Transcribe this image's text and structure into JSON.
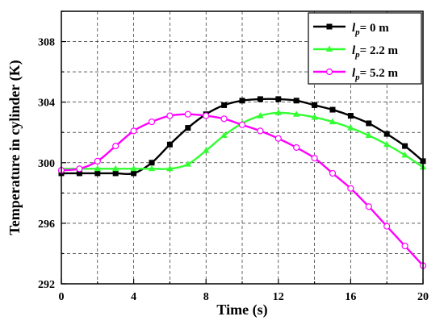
{
  "chart_data": {
    "type": "line",
    "xlabel": "Time (s)",
    "ylabel": "Temperature in cylinder (K)",
    "xlim": [
      0,
      20
    ],
    "ylim": [
      292,
      310
    ],
    "xticks": [
      0,
      4,
      8,
      12,
      16,
      20
    ],
    "yticks": [
      292,
      296,
      300,
      304,
      308
    ],
    "grid": true,
    "legend_position": "top-right",
    "series": [
      {
        "name": "lp= 0 m",
        "name_var": "l",
        "name_sub": "p",
        "name_rest": "= 0 m",
        "color": "#000000",
        "marker": "filled-square",
        "x": [
          0,
          1,
          2,
          3,
          4,
          5,
          6,
          7,
          8,
          9,
          10,
          11,
          12,
          13,
          14,
          15,
          16,
          17,
          18,
          19,
          20
        ],
        "y": [
          299.3,
          299.3,
          299.3,
          299.3,
          299.3,
          300.0,
          301.2,
          302.3,
          303.2,
          303.8,
          304.1,
          304.2,
          304.2,
          304.1,
          303.8,
          303.5,
          303.1,
          302.6,
          301.9,
          301.1,
          300.1
        ]
      },
      {
        "name": "lp= 2.2 m",
        "name_var": "l",
        "name_sub": "p",
        "name_rest": "= 2.2 m",
        "color": "#33ff33",
        "marker": "filled-triangle",
        "x": [
          0,
          1,
          2,
          3,
          4,
          5,
          6,
          7,
          8,
          9,
          10,
          11,
          12,
          13,
          14,
          15,
          16,
          17,
          18,
          19,
          20
        ],
        "y": [
          299.6,
          299.6,
          299.6,
          299.6,
          299.6,
          299.6,
          299.6,
          299.9,
          300.8,
          301.8,
          302.6,
          303.1,
          303.3,
          303.2,
          303.0,
          302.7,
          302.3,
          301.8,
          301.2,
          300.5,
          299.7
        ]
      },
      {
        "name": "lp= 5.2 m",
        "name_var": "l",
        "name_sub": "p",
        "name_rest": "= 5.2 m",
        "color": "#ff00ff",
        "marker": "open-circle",
        "x": [
          0,
          1,
          2,
          3,
          4,
          5,
          6,
          7,
          8,
          9,
          10,
          11,
          12,
          13,
          14,
          15,
          16,
          17,
          18,
          19,
          20
        ],
        "y": [
          299.5,
          299.6,
          300.1,
          301.1,
          302.1,
          302.7,
          303.1,
          303.2,
          303.1,
          302.9,
          302.5,
          302.1,
          301.6,
          301.0,
          300.3,
          299.3,
          298.3,
          297.1,
          295.8,
          294.5,
          293.2
        ]
      }
    ]
  }
}
